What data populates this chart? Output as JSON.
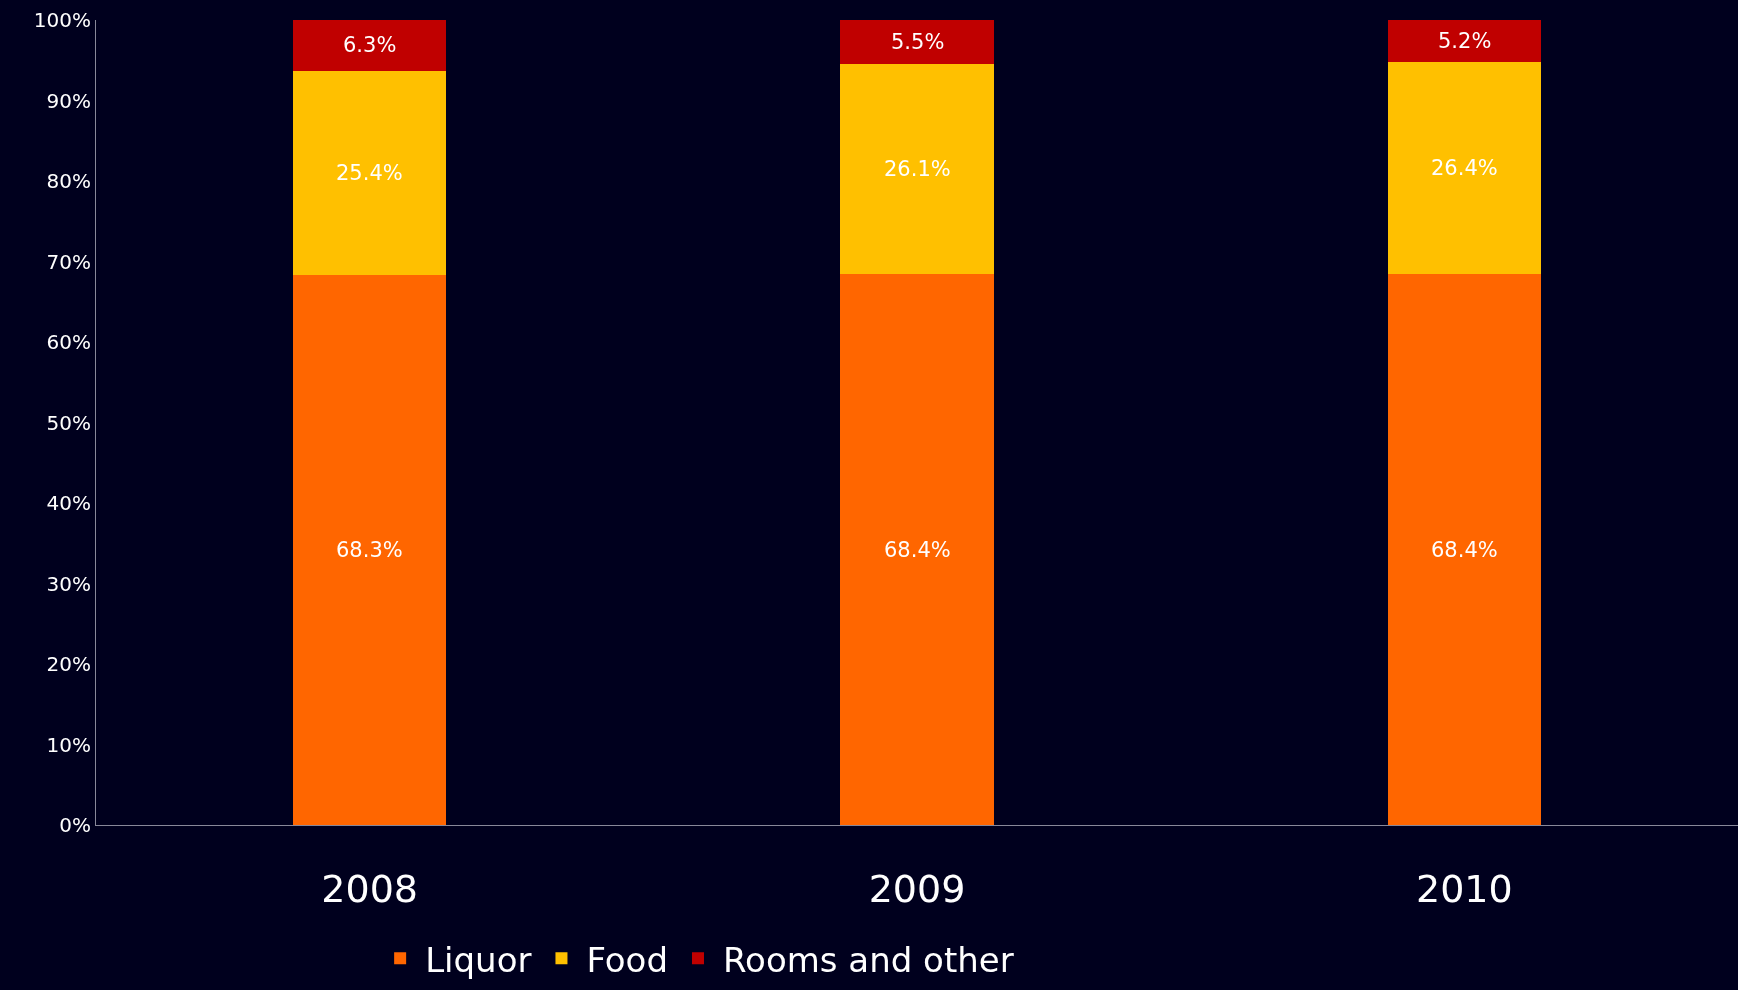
{
  "chart_data": {
    "type": "bar",
    "stacked": true,
    "categories": [
      "2008",
      "2009",
      "2010"
    ],
    "series": [
      {
        "name": "Liquor",
        "color": "#ff6600",
        "values": [
          68.3,
          68.4,
          68.4
        ],
        "value_labels": [
          "68.3%",
          "68.4%",
          "68.4%"
        ]
      },
      {
        "name": "Food",
        "color": "#ffc000",
        "values": [
          25.4,
          26.1,
          26.4
        ],
        "value_labels": [
          "25.4%",
          "26.1%",
          "26.4%"
        ]
      },
      {
        "name": "Rooms and other",
        "color": "#c00000",
        "values": [
          6.3,
          5.5,
          5.2
        ],
        "value_labels": [
          "6.3%",
          "5.5%",
          "5.2%"
        ]
      }
    ],
    "ylim": [
      0,
      100
    ],
    "yticks": [
      {
        "value": 0,
        "label": "0%"
      },
      {
        "value": 10,
        "label": "10%"
      },
      {
        "value": 20,
        "label": "20%"
      },
      {
        "value": 30,
        "label": "30%"
      },
      {
        "value": 40,
        "label": "40%"
      },
      {
        "value": 50,
        "label": "50%"
      },
      {
        "value": 60,
        "label": "60%"
      },
      {
        "value": 70,
        "label": "70%"
      },
      {
        "value": 80,
        "label": "80%"
      },
      {
        "value": 90,
        "label": "90%"
      },
      {
        "value": 100,
        "label": "100%"
      }
    ],
    "grid": false,
    "legend": "bottom"
  }
}
